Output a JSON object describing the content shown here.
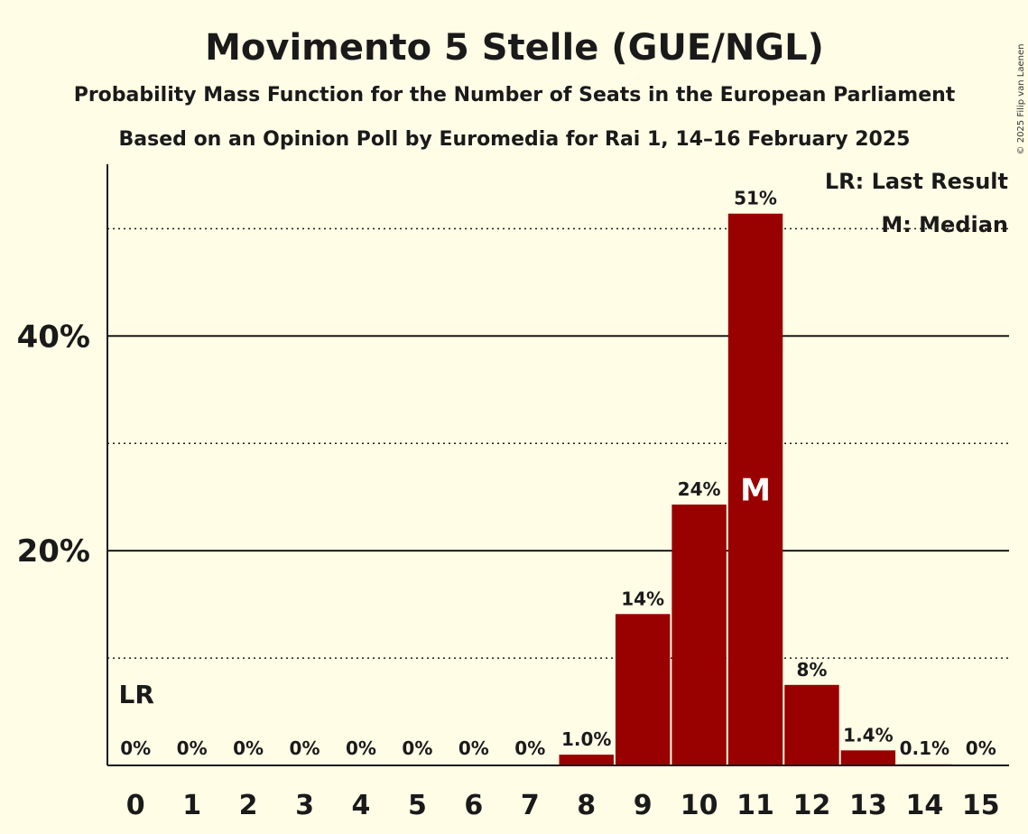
{
  "chart_data": {
    "type": "bar",
    "title": "Movimento 5 Stelle (GUE/NGL)",
    "subtitle": "Probability Mass Function for the Number of Seats in the European Parliament",
    "source_line": "Based on an Opinion Poll by Euromedia for Rai 1, 14–16 February 2025",
    "copyright": "© 2025 Filip van Laenen",
    "xlabel": "",
    "ylabel": "",
    "categories": [
      "0",
      "1",
      "2",
      "3",
      "4",
      "5",
      "6",
      "7",
      "8",
      "9",
      "10",
      "11",
      "12",
      "13",
      "14",
      "15"
    ],
    "values": [
      0,
      0,
      0,
      0,
      0,
      0,
      0,
      0,
      1.0,
      14.1,
      24.3,
      51.4,
      7.5,
      1.4,
      0.1,
      0
    ],
    "value_labels": [
      "0%",
      "0%",
      "0%",
      "0%",
      "0%",
      "0%",
      "0%",
      "0%",
      "1.0%",
      "14%",
      "24%",
      "51%",
      "8%",
      "1.4%",
      "0.1%",
      "0%"
    ],
    "ylim": [
      0,
      56
    ],
    "y_major_ticks": [
      20,
      40
    ],
    "y_major_tick_labels": [
      "20%",
      "40%"
    ],
    "y_minor_gridlines": [
      10,
      30,
      50
    ],
    "last_result_seat": 0,
    "last_result_label": "LR",
    "median_seat": 11,
    "median_label": "M",
    "legend": {
      "position": "top-right",
      "lr_text": "LR: Last Result",
      "m_text": "M: Median"
    },
    "colors": {
      "background": "#fffde6",
      "bar": "#990000",
      "text": "#1a1a1a",
      "median_text": "#ffffff"
    }
  }
}
